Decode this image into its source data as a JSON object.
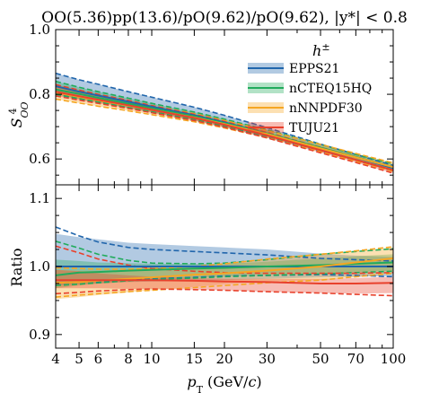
{
  "chart_data": {
    "title": "OO(5.36)pp(13.6)/pO(9.62)/pO(9.62), |y*| < 0.8",
    "xlabel": "p_T (GeV/c)",
    "xscale": "log",
    "xlim": [
      4,
      100
    ],
    "xticks": [
      4,
      5,
      6,
      8,
      10,
      15,
      20,
      30,
      50,
      70,
      100
    ],
    "xtick_labels": [
      "4",
      "5",
      "6",
      "8",
      "10",
      "15",
      "20",
      "30",
      "50",
      "70",
      "100"
    ],
    "legend": {
      "title": "h±",
      "position": "upper-right",
      "entries": [
        "EPPS21",
        "nCTEQ15HQ",
        "nNNPDF30",
        "TUJU21"
      ]
    },
    "colors": {
      "EPPS21": "#2166ac",
      "nCTEQ15HQ": "#21ab5c",
      "nNNPDF30": "#f5a623",
      "TUJU21": "#e8412c"
    },
    "panels": [
      {
        "type": "line",
        "ylabel": "S^4_OO",
        "ylim": [
          0.52,
          1.0
        ],
        "yticks": [
          0.6,
          0.8,
          1.0
        ],
        "ytick_labels": [
          "0.6",
          "0.8",
          "1.0"
        ],
        "x": [
          4,
          5,
          6,
          8,
          10,
          15,
          20,
          30,
          50,
          70,
          100
        ],
        "series": [
          {
            "name": "EPPS21",
            "central": [
              0.825,
              0.808,
              0.796,
              0.777,
              0.762,
              0.735,
              0.713,
              0.679,
              0.634,
              0.605,
              0.572
            ],
            "band_upper": [
              0.865,
              0.845,
              0.831,
              0.808,
              0.791,
              0.76,
              0.735,
              0.697,
              0.646,
              0.614,
              0.58
            ],
            "band_lower": [
              0.8,
              0.786,
              0.776,
              0.758,
              0.744,
              0.719,
              0.699,
              0.667,
              0.624,
              0.596,
              0.563
            ]
          },
          {
            "name": "nCTEQ15HQ",
            "central": [
              0.815,
              0.801,
              0.789,
              0.771,
              0.757,
              0.732,
              0.711,
              0.679,
              0.635,
              0.606,
              0.575
            ],
            "band_upper": [
              0.84,
              0.822,
              0.808,
              0.788,
              0.772,
              0.745,
              0.723,
              0.69,
              0.645,
              0.614,
              0.585
            ],
            "band_lower": [
              0.8,
              0.787,
              0.776,
              0.759,
              0.746,
              0.722,
              0.702,
              0.671,
              0.627,
              0.598,
              0.566
            ]
          },
          {
            "name": "nNNPDF30",
            "central": [
              0.806,
              0.792,
              0.781,
              0.765,
              0.752,
              0.728,
              0.708,
              0.677,
              0.633,
              0.605,
              0.575
            ],
            "band_upper": [
              0.825,
              0.809,
              0.797,
              0.779,
              0.765,
              0.74,
              0.719,
              0.688,
              0.645,
              0.617,
              0.588
            ],
            "band_lower": [
              0.785,
              0.773,
              0.763,
              0.749,
              0.737,
              0.715,
              0.696,
              0.666,
              0.622,
              0.593,
              0.562
            ]
          },
          {
            "name": "TUJU21",
            "central": [
              0.808,
              0.794,
              0.783,
              0.766,
              0.752,
              0.727,
              0.706,
              0.673,
              0.627,
              0.597,
              0.565
            ],
            "band_upper": [
              0.83,
              0.813,
              0.8,
              0.781,
              0.765,
              0.738,
              0.716,
              0.682,
              0.636,
              0.606,
              0.575
            ],
            "band_lower": [
              0.795,
              0.782,
              0.772,
              0.756,
              0.743,
              0.719,
              0.698,
              0.665,
              0.619,
              0.589,
              0.556
            ]
          }
        ]
      },
      {
        "type": "line",
        "ylabel": "Ratio",
        "ylim": [
          0.88,
          1.12
        ],
        "yticks": [
          0.9,
          1.0,
          1.1
        ],
        "ytick_labels": [
          "0.9",
          "1.0",
          "1.1"
        ],
        "reference_line": 1.0,
        "x": [
          4,
          5,
          6,
          8,
          10,
          15,
          20,
          30,
          50,
          70,
          100
        ],
        "series": [
          {
            "name": "EPPS21",
            "central": [
              1.0,
              1.0,
              1.0,
              1.0,
              1.0,
              1.0,
              1.0,
              1.0,
              1.0,
              1.0,
              1.0
            ],
            "band_upper": [
              1.048,
              1.043,
              1.04,
              1.035,
              1.033,
              1.03,
              1.028,
              1.025,
              1.019,
              1.016,
              1.014
            ],
            "band_lower": [
              0.972,
              0.974,
              0.975,
              0.977,
              0.978,
              0.979,
              0.98,
              0.982,
              0.984,
              0.985,
              0.986
            ],
            "dashed_upper": [
              1.058,
              1.045,
              1.036,
              1.028,
              1.025,
              1.022,
              1.02,
              1.017,
              1.012,
              1.01,
              1.008
            ],
            "dashed_lower": [
              0.975,
              0.977,
              0.978,
              0.98,
              0.982,
              0.984,
              0.986,
              0.987,
              0.988,
              0.987,
              0.985
            ]
          },
          {
            "name": "nCTEQ15HQ",
            "central": [
              0.987,
              0.991,
              0.992,
              0.994,
              0.995,
              0.997,
              0.998,
              1.0,
              1.002,
              1.004,
              1.006
            ],
            "band_upper": [
              1.01,
              1.008,
              1.006,
              1.005,
              1.004,
              1.004,
              1.004,
              1.007,
              1.012,
              1.015,
              1.018
            ],
            "band_lower": [
              0.968,
              0.972,
              0.975,
              0.978,
              0.98,
              0.983,
              0.985,
              0.988,
              0.99,
              0.992,
              0.994
            ],
            "dashed_upper": [
              1.037,
              1.027,
              1.018,
              1.009,
              1.005,
              1.004,
              1.005,
              1.01,
              1.018,
              1.022,
              1.026
            ],
            "dashed_lower": [
              0.972,
              0.974,
              0.976,
              0.979,
              0.981,
              0.983,
              0.985,
              0.987,
              0.989,
              0.991,
              0.993
            ]
          },
          {
            "name": "nNNPDF30",
            "central": [
              0.976,
              0.977,
              0.979,
              0.982,
              0.984,
              0.988,
              0.99,
              0.994,
              1.0,
              1.006,
              1.012
            ],
            "band_upper": [
              0.995,
              0.994,
              0.994,
              0.995,
              0.996,
              0.999,
              1.003,
              1.01,
              1.017,
              1.022,
              1.028
            ],
            "band_lower": [
              0.952,
              0.955,
              0.958,
              0.962,
              0.965,
              0.97,
              0.974,
              0.978,
              0.98,
              0.984,
              0.99
            ],
            "dashed_upper": [
              0.998,
              0.997,
              0.996,
              0.996,
              0.997,
              1.0,
              1.004,
              1.011,
              1.018,
              1.023,
              1.029
            ],
            "dashed_lower": [
              0.955,
              0.958,
              0.96,
              0.963,
              0.965,
              0.969,
              0.972,
              0.976,
              0.98,
              0.985,
              0.99
            ]
          },
          {
            "name": "TUJU21",
            "central": [
              0.98,
              0.98,
              0.98,
              0.98,
              0.98,
              0.979,
              0.978,
              0.977,
              0.975,
              0.975,
              0.976
            ],
            "band_upper": [
              0.995,
              0.993,
              0.99,
              0.987,
              0.985,
              0.983,
              0.982,
              0.982,
              0.982,
              0.983,
              0.985
            ],
            "band_lower": [
              0.968,
              0.968,
              0.968,
              0.967,
              0.967,
              0.966,
              0.965,
              0.963,
              0.961,
              0.96,
              0.961
            ],
            "dashed_upper": [
              1.03,
              1.02,
              1.011,
              1.002,
              0.997,
              0.993,
              0.991,
              0.99,
              0.99,
              0.99,
              0.991
            ],
            "dashed_lower": [
              0.96,
              0.962,
              0.964,
              0.966,
              0.967,
              0.966,
              0.965,
              0.963,
              0.961,
              0.959,
              0.957
            ]
          }
        ]
      }
    ]
  }
}
